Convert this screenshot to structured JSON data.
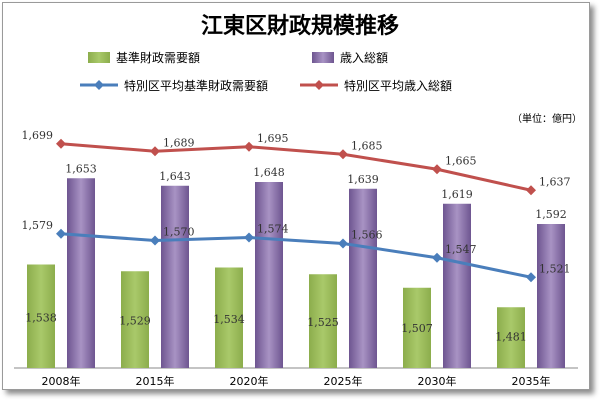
{
  "chart_data": {
    "type": "bar+line",
    "title": "江東区財政規模推移",
    "unit_note": "（単位：億円）",
    "categories": [
      "2008年",
      "2015年",
      "2020年",
      "2025年",
      "2030年",
      "2035年"
    ],
    "bar_series": [
      {
        "name": "基準財政需要額",
        "color": "#9bbb59",
        "values": [
          1538,
          1529,
          1534,
          1525,
          1507,
          1481
        ]
      },
      {
        "name": "歳入総額",
        "color": "#8064a2",
        "values": [
          1653,
          1643,
          1648,
          1639,
          1619,
          1592
        ]
      }
    ],
    "line_series": [
      {
        "name": "特別区平均基準財政需要額",
        "color": "#4a7ebb",
        "values": [
          1579,
          1570,
          1574,
          1566,
          1547,
          1521
        ]
      },
      {
        "name": "特別区平均歳入総額",
        "color": "#c0504d",
        "values": [
          1699,
          1689,
          1695,
          1685,
          1665,
          1637
        ]
      }
    ],
    "ylim": [
      1400,
      1720
    ],
    "grid": false,
    "legend_position": "top"
  }
}
